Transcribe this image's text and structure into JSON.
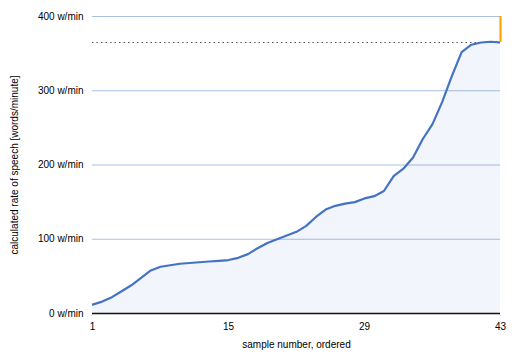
{
  "chart_data": {
    "type": "area",
    "x": [
      1,
      2,
      3,
      4,
      5,
      6,
      7,
      8,
      9,
      10,
      11,
      12,
      13,
      14,
      15,
      16,
      17,
      18,
      19,
      20,
      21,
      22,
      23,
      24,
      25,
      26,
      27,
      28,
      29,
      30,
      31,
      32,
      33,
      34,
      35,
      36,
      37,
      38,
      39,
      40,
      41,
      42,
      43
    ],
    "values": [
      12,
      16,
      22,
      30,
      38,
      48,
      58,
      63,
      65,
      67,
      68,
      69,
      70,
      71,
      72,
      75,
      80,
      88,
      95,
      100,
      105,
      110,
      118,
      130,
      140,
      145,
      148,
      150,
      155,
      158,
      165,
      185,
      195,
      210,
      235,
      255,
      285,
      320,
      352,
      362,
      365,
      366,
      365
    ],
    "color": "#4472C4",
    "xlabel": "sample number, ordered",
    "ylabel": "calculated rate of speech [words/minute]",
    "xlim": [
      1,
      43
    ],
    "ylim": [
      0,
      400
    ],
    "xticks": [
      1,
      15,
      29,
      43
    ],
    "yticks": [
      {
        "value": 0,
        "label": "0 w/min"
      },
      {
        "value": 100,
        "label": "100 w/min"
      },
      {
        "value": 200,
        "label": "200 w/min"
      },
      {
        "value": 300,
        "label": "300 w/min"
      },
      {
        "value": 400,
        "label": "400 w/min"
      }
    ],
    "grid": true,
    "reference_lines": [
      {
        "y": 365,
        "color": "#555555",
        "line_style": "dotted"
      }
    ],
    "segments": [
      {
        "x": 43,
        "y": [
          365,
          400
        ],
        "color": "#FFA500"
      }
    ]
  }
}
